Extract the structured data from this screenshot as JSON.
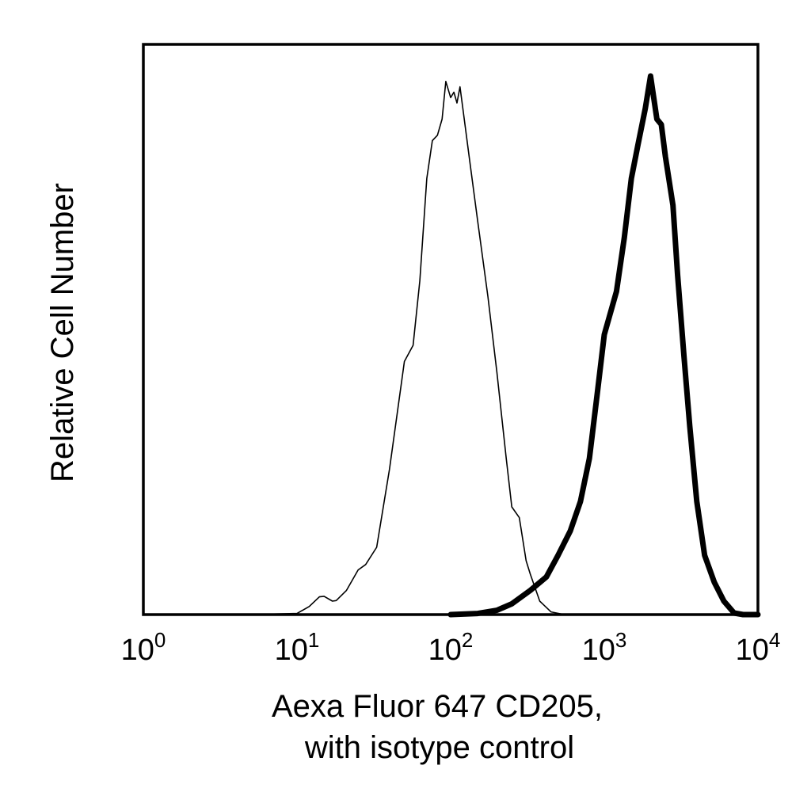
{
  "chart_data": {
    "type": "line",
    "title": "",
    "xlabel": [
      "Aexa Fluor 647 CD205,",
      "with isotype control"
    ],
    "ylabel": "Relative Cell Number",
    "x_scale": "log",
    "xlim": [
      1,
      10000
    ],
    "ylim": [
      0,
      100
    ],
    "grid": false,
    "x_ticks": [
      {
        "base": "10",
        "exp": "0"
      },
      {
        "base": "10",
        "exp": "1"
      },
      {
        "base": "10",
        "exp": "2"
      },
      {
        "base": "10",
        "exp": "3"
      },
      {
        "base": "10",
        "exp": "4"
      }
    ],
    "y_ticks": [],
    "series": [
      {
        "style": "thin",
        "color": "#000000",
        "points": [
          [
            5,
            0
          ],
          [
            10,
            0.2
          ],
          [
            12,
            1.5
          ],
          [
            14,
            3.3
          ],
          [
            15,
            3.4
          ],
          [
            17,
            2.5
          ],
          [
            18,
            2.6
          ],
          [
            21,
            4.5
          ],
          [
            25,
            8.3
          ],
          [
            28,
            9.3
          ],
          [
            33,
            12.5
          ],
          [
            40,
            27
          ],
          [
            50,
            47
          ],
          [
            57,
            50
          ],
          [
            63,
            62
          ],
          [
            70,
            81
          ],
          [
            76,
            88
          ],
          [
            82,
            89
          ],
          [
            88,
            92
          ],
          [
            93,
            99
          ],
          [
            100,
            96
          ],
          [
            105,
            97
          ],
          [
            110,
            95
          ],
          [
            115,
            98
          ],
          [
            120,
            94
          ],
          [
            132,
            85
          ],
          [
            150,
            73
          ],
          [
            175,
            59
          ],
          [
            200,
            45
          ],
          [
            230,
            29
          ],
          [
            250,
            20
          ],
          [
            280,
            18
          ],
          [
            310,
            10
          ],
          [
            330,
            7.5
          ],
          [
            380,
            2.5
          ],
          [
            450,
            0.5
          ],
          [
            550,
            0
          ]
        ]
      },
      {
        "style": "thick",
        "color": "#000000",
        "points": [
          [
            100,
            0
          ],
          [
            150,
            0.2
          ],
          [
            200,
            0.8
          ],
          [
            250,
            2
          ],
          [
            330,
            4.5
          ],
          [
            420,
            7
          ],
          [
            500,
            11
          ],
          [
            600,
            15.5
          ],
          [
            700,
            21
          ],
          [
            800,
            29
          ],
          [
            900,
            41
          ],
          [
            1000,
            52
          ],
          [
            1200,
            60
          ],
          [
            1350,
            70
          ],
          [
            1500,
            81
          ],
          [
            1650,
            87
          ],
          [
            1850,
            94
          ],
          [
            2000,
            100
          ],
          [
            2200,
            92
          ],
          [
            2350,
            91
          ],
          [
            2500,
            85
          ],
          [
            2800,
            76
          ],
          [
            3000,
            63
          ],
          [
            3300,
            48
          ],
          [
            3600,
            35
          ],
          [
            4000,
            21
          ],
          [
            4500,
            11
          ],
          [
            5200,
            6
          ],
          [
            6000,
            2.5
          ],
          [
            7000,
            0.3
          ],
          [
            8000,
            0
          ],
          [
            10000,
            0
          ]
        ]
      }
    ]
  }
}
